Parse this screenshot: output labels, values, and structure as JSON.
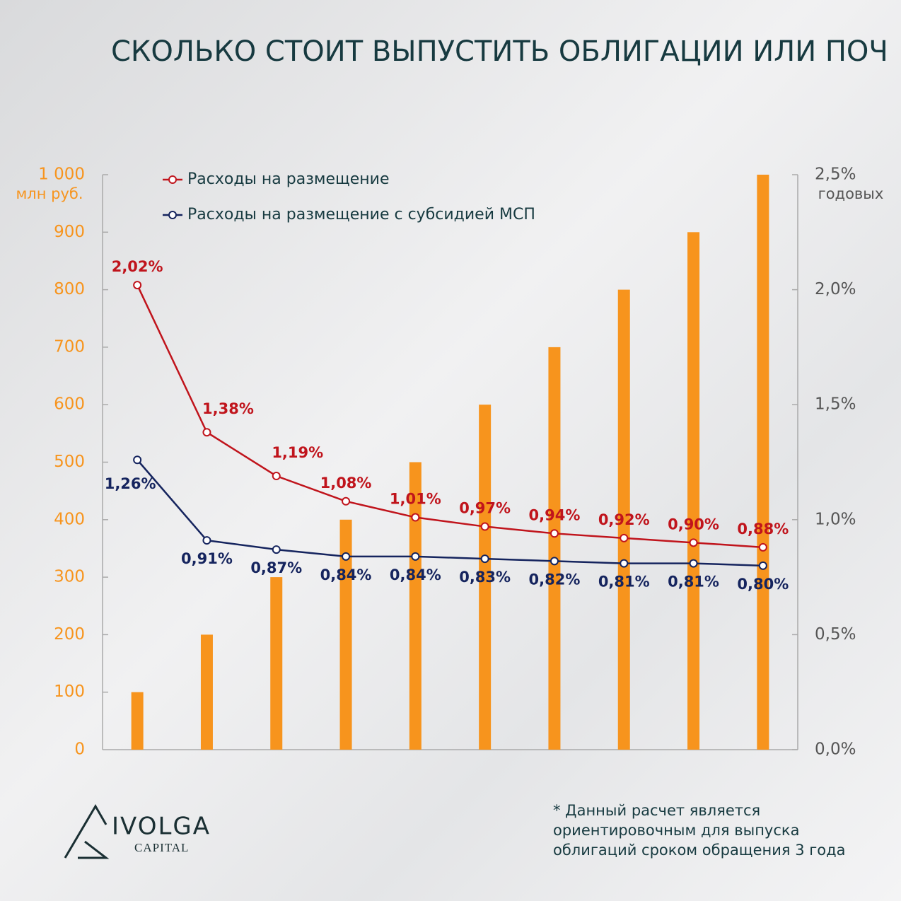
{
  "chart_data": {
    "type": "bar",
    "title": "СКОЛЬКО СТОИТ ВЫПУСТИТЬ ОБЛИГАЦИИ ИЛИ ПОЧ",
    "y_unit": "млн руб.",
    "y2_unit": "годовых",
    "categories": [
      null,
      null,
      null,
      null,
      null,
      null,
      null,
      null,
      null,
      null
    ],
    "values": [
      100,
      200,
      300,
      400,
      500,
      600,
      700,
      800,
      900,
      1000
    ],
    "color": "#f7941d",
    "ylim": [
      0,
      1000
    ],
    "yticks": [
      0,
      100,
      200,
      300,
      400,
      500,
      600,
      700,
      800,
      900,
      {
        "value": 1000,
        "label": "1 000"
      }
    ],
    "y2lim": [
      0,
      2.5
    ],
    "y2ticks": [
      {
        "value": 0,
        "label": "0,0%"
      },
      {
        "value": 0.5,
        "label": "0,5%"
      },
      {
        "value": 1,
        "label": "1,0%"
      },
      {
        "value": 1.5,
        "label": "1,5%"
      },
      {
        "value": 2,
        "label": "2,0%"
      },
      {
        "value": 2.5,
        "label": "2,5%"
      }
    ],
    "series": [
      {
        "name": "Расходы на размещение",
        "type": "line",
        "axis": "y2",
        "color": "#c0141c",
        "values": [
          2.02,
          1.38,
          1.19,
          1.08,
          1.01,
          0.97,
          0.94,
          0.92,
          0.9,
          0.88
        ],
        "value_labels": [
          "2,02%",
          "1,38%",
          "1,19%",
          "1,08%",
          "1,01%",
          "0,97%",
          "0,94%",
          "0,92%",
          "0,90%",
          "0,88%"
        ]
      },
      {
        "name": "Расходы на размещение с субсидией МСП",
        "type": "line",
        "axis": "y2",
        "color": "#15245e",
        "values": [
          1.26,
          0.91,
          0.87,
          0.84,
          0.84,
          0.83,
          0.82,
          0.81,
          0.81,
          0.8
        ],
        "value_labels": [
          "1,26%",
          "0,91%",
          "0,87%",
          "0,84%",
          "0,84%",
          "0,83%",
          "0,82%",
          "0,81%",
          "0,81%",
          "0,80%"
        ]
      }
    ],
    "footnote": [
      "* Данный расчет является",
      "ориентировочным для выпуска",
      "облигаций сроком обращения 3 года"
    ],
    "logo": {
      "name": "IVOLGA",
      "sub": "CAPITAL"
    }
  }
}
